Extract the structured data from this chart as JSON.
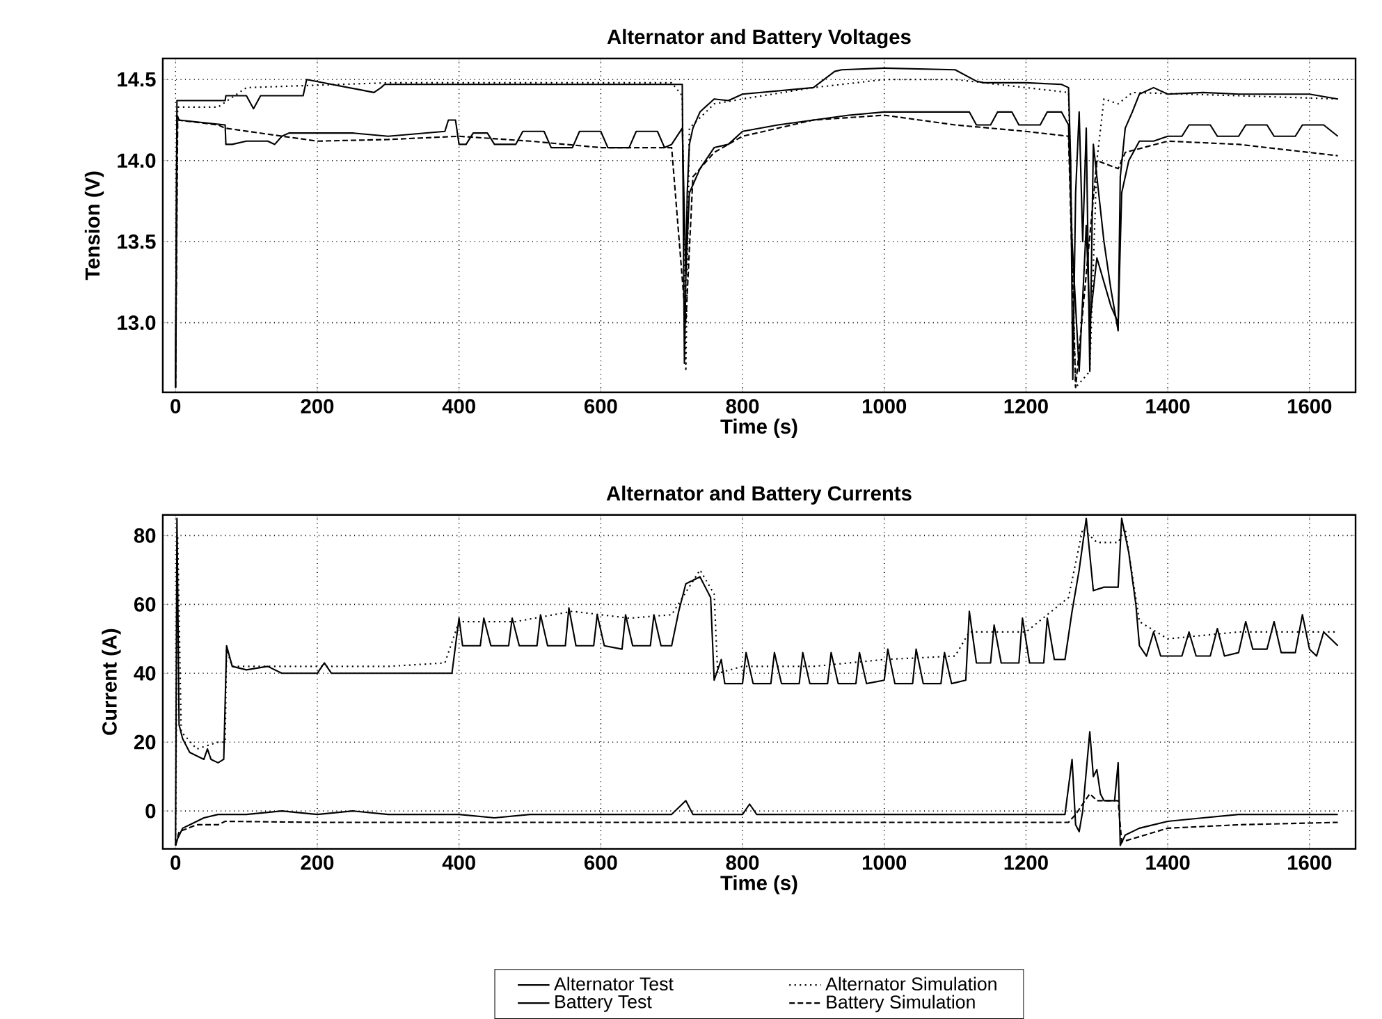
{
  "chart_data": [
    {
      "type": "line",
      "title": "Alternator and Battery Voltages",
      "xlabel": "Time (s)",
      "ylabel": "Tension (V)",
      "xlim": [
        -18,
        1665
      ],
      "ylim": [
        12.57,
        14.63
      ],
      "xticks": [
        0,
        200,
        400,
        600,
        800,
        1000,
        1200,
        1400,
        1600
      ],
      "yticks": [
        {
          "value": 13,
          "label": "13.0"
        },
        {
          "value": 13.5,
          "label": "13.5"
        },
        {
          "value": 14,
          "label": "14.0"
        },
        {
          "value": 14.5,
          "label": "14.5"
        }
      ],
      "grid": true,
      "series": [
        {
          "color": "#000000",
          "line_style": "solid",
          "x": [
            0,
            2,
            5,
            70,
            71,
            100,
            110,
            120,
            180,
            185,
            280,
            290,
            295,
            380,
            400,
            500,
            600,
            700,
            715,
            718,
            722,
            725,
            730,
            740,
            760,
            780,
            800,
            850,
            900,
            930,
            940,
            1000,
            1100,
            1130,
            1140,
            1200,
            1250,
            1260,
            1263,
            1266,
            1270,
            1275,
            1280,
            1285,
            1290,
            1295,
            1300,
            1310,
            1320,
            1330,
            1333,
            1340,
            1350,
            1360,
            1380,
            1400,
            1450,
            1500,
            1550,
            1600,
            1640
          ],
          "values": [
            12.6,
            14.37,
            14.37,
            14.37,
            14.4,
            14.4,
            14.32,
            14.4,
            14.4,
            14.5,
            14.42,
            14.45,
            14.47,
            14.47,
            14.47,
            14.47,
            14.47,
            14.47,
            14.47,
            12.75,
            13.8,
            14.1,
            14.2,
            14.3,
            14.38,
            14.37,
            14.41,
            14.43,
            14.45,
            14.55,
            14.56,
            14.57,
            14.56,
            14.49,
            14.48,
            14.48,
            14.47,
            14.45,
            14.0,
            12.65,
            13.8,
            14.3,
            13.5,
            14.2,
            12.7,
            14.1,
            13.9,
            13.5,
            13.2,
            12.95,
            13.9,
            14.2,
            14.3,
            14.41,
            14.45,
            14.41,
            14.42,
            14.41,
            14.41,
            14.41,
            14.38
          ]
        },
        {
          "color": "#000000",
          "line_style": "dotted",
          "x": [
            0,
            3,
            60,
            100,
            300,
            700,
            715,
            720,
            725,
            760,
            800,
            900,
            1000,
            1100,
            1200,
            1260,
            1270,
            1290,
            1300,
            1310,
            1330,
            1350,
            1500,
            1640
          ],
          "values": [
            12.6,
            14.33,
            14.33,
            14.45,
            14.48,
            14.48,
            14.4,
            12.7,
            14.2,
            14.35,
            14.38,
            14.45,
            14.5,
            14.5,
            14.45,
            14.42,
            12.6,
            12.7,
            14.0,
            14.38,
            14.35,
            14.42,
            14.4,
            14.38
          ]
        },
        {
          "color": "#000000",
          "line_style": "solid",
          "x": [
            0,
            2,
            5,
            70,
            71,
            80,
            100,
            130,
            140,
            150,
            160,
            200,
            250,
            300,
            380,
            385,
            395,
            400,
            410,
            420,
            440,
            450,
            480,
            490,
            520,
            530,
            560,
            570,
            600,
            610,
            640,
            650,
            680,
            690,
            700,
            715,
            720,
            725,
            740,
            760,
            780,
            800,
            850,
            900,
            950,
            1000,
            1050,
            1100,
            1120,
            1130,
            1150,
            1160,
            1180,
            1190,
            1220,
            1230,
            1250,
            1260,
            1265,
            1275,
            1285,
            1290,
            1300,
            1320,
            1330,
            1335,
            1345,
            1360,
            1380,
            1400,
            1420,
            1430,
            1460,
            1470,
            1500,
            1510,
            1540,
            1550,
            1580,
            1590,
            1620,
            1640
          ],
          "values": [
            12.6,
            14.28,
            14.25,
            14.22,
            14.1,
            14.1,
            14.12,
            14.12,
            14.1,
            14.15,
            14.17,
            14.17,
            14.17,
            14.15,
            14.18,
            14.25,
            14.25,
            14.1,
            14.1,
            14.17,
            14.17,
            14.1,
            14.1,
            14.18,
            14.18,
            14.08,
            14.08,
            14.18,
            14.18,
            14.08,
            14.08,
            14.18,
            14.18,
            14.08,
            14.1,
            14.2,
            13.3,
            13.8,
            13.95,
            14.08,
            14.1,
            14.18,
            14.22,
            14.25,
            14.28,
            14.3,
            14.3,
            14.3,
            14.3,
            14.22,
            14.22,
            14.3,
            14.3,
            14.22,
            14.22,
            14.3,
            14.3,
            14.22,
            13.5,
            12.7,
            13.6,
            13.0,
            13.4,
            13.1,
            13.0,
            13.8,
            14.0,
            14.12,
            14.12,
            14.15,
            14.15,
            14.22,
            14.22,
            14.15,
            14.15,
            14.22,
            14.22,
            14.15,
            14.15,
            14.22,
            14.22,
            14.15
          ]
        },
        {
          "color": "#000000",
          "line_style": "dashed",
          "x": [
            0,
            3,
            60,
            70,
            200,
            300,
            400,
            500,
            600,
            700,
            720,
            730,
            760,
            800,
            900,
            1000,
            1100,
            1200,
            1260,
            1270,
            1300,
            1330,
            1340,
            1400,
            1500,
            1600,
            1640
          ],
          "values": [
            12.6,
            14.25,
            14.22,
            14.2,
            14.12,
            14.13,
            14.15,
            14.12,
            14.08,
            14.08,
            13.0,
            13.9,
            14.05,
            14.15,
            14.25,
            14.28,
            14.22,
            14.18,
            14.15,
            12.6,
            14.0,
            13.95,
            14.05,
            14.12,
            14.1,
            14.05,
            14.03
          ]
        }
      ]
    },
    {
      "type": "line",
      "title": "Alternator and Battery Currents",
      "xlabel": "Time (s)",
      "ylabel": "Current (A)",
      "xlim": [
        -18,
        1665
      ],
      "ylim": [
        -11,
        86
      ],
      "xticks": [
        0,
        200,
        400,
        600,
        800,
        1000,
        1200,
        1400,
        1600
      ],
      "yticks": [
        0,
        20,
        40,
        60,
        80
      ],
      "grid": true,
      "legend": "bottom",
      "series": [
        {
          "name": "Alternator Test",
          "color": "#000000",
          "line_style": "solid",
          "x": [
            0,
            2,
            5,
            10,
            20,
            30,
            40,
            45,
            50,
            60,
            68,
            72,
            80,
            100,
            130,
            150,
            200,
            210,
            220,
            300,
            390,
            400,
            405,
            430,
            435,
            445,
            470,
            475,
            485,
            510,
            515,
            525,
            550,
            555,
            565,
            590,
            595,
            605,
            630,
            635,
            645,
            670,
            675,
            685,
            700,
            710,
            720,
            740,
            755,
            760,
            770,
            775,
            800,
            805,
            815,
            840,
            845,
            855,
            880,
            885,
            895,
            920,
            925,
            935,
            960,
            965,
            975,
            1000,
            1005,
            1015,
            1040,
            1045,
            1055,
            1080,
            1085,
            1095,
            1115,
            1120,
            1130,
            1150,
            1155,
            1165,
            1190,
            1195,
            1205,
            1225,
            1230,
            1240,
            1255,
            1265,
            1275,
            1285,
            1295,
            1310,
            1330,
            1335,
            1345,
            1355,
            1360,
            1370,
            1380,
            1390,
            1420,
            1430,
            1440,
            1460,
            1470,
            1480,
            1500,
            1510,
            1520,
            1540,
            1550,
            1560,
            1580,
            1590,
            1600,
            1610,
            1620,
            1640
          ],
          "values": [
            -10,
            85,
            25,
            21,
            17,
            16,
            15,
            18,
            15,
            14,
            15,
            48,
            42,
            41,
            42,
            40,
            40,
            43,
            40,
            40,
            40,
            56,
            48,
            48,
            56,
            48,
            48,
            56,
            48,
            48,
            57,
            48,
            48,
            59,
            48,
            48,
            57,
            48,
            47,
            57,
            48,
            48,
            57,
            48,
            48,
            58,
            66,
            68,
            62,
            38,
            44,
            37,
            37,
            46,
            37,
            37,
            46,
            37,
            37,
            46,
            37,
            37,
            46,
            37,
            37,
            46,
            37,
            38,
            47,
            37,
            37,
            47,
            37,
            37,
            46,
            37,
            38,
            58,
            43,
            43,
            54,
            43,
            43,
            56,
            43,
            43,
            56,
            44,
            44,
            58,
            70,
            85,
            64,
            65,
            65,
            85,
            75,
            60,
            48,
            45,
            52,
            45,
            45,
            52,
            45,
            45,
            53,
            45,
            46,
            55,
            47,
            47,
            55,
            46,
            46,
            57,
            47,
            45,
            52,
            48
          ]
        },
        {
          "name": "Alternator Simulation",
          "color": "#000000",
          "line_style": "dotted",
          "x": [
            0,
            3,
            8,
            30,
            60,
            70,
            72,
            80,
            200,
            300,
            380,
            400,
            440,
            480,
            560,
            640,
            700,
            740,
            760,
            765,
            800,
            900,
            1000,
            1100,
            1120,
            1200,
            1260,
            1280,
            1300,
            1330,
            1340,
            1360,
            1400,
            1500,
            1640
          ],
          "values": [
            -10,
            80,
            23,
            18,
            20,
            20,
            47,
            42,
            42,
            42,
            43,
            55,
            55,
            55,
            58,
            56,
            57,
            70,
            63,
            40,
            42,
            42,
            44,
            45,
            52,
            52,
            62,
            82,
            78,
            78,
            82,
            55,
            50,
            52,
            52
          ]
        },
        {
          "name": "Battery Test",
          "color": "#000000",
          "line_style": "solid",
          "x": [
            0,
            3,
            10,
            20,
            40,
            60,
            100,
            150,
            200,
            250,
            300,
            350,
            400,
            450,
            500,
            550,
            600,
            650,
            700,
            720,
            730,
            800,
            810,
            820,
            900,
            1000,
            1100,
            1200,
            1255,
            1265,
            1270,
            1275,
            1280,
            1290,
            1295,
            1300,
            1305,
            1310,
            1325,
            1330,
            1333,
            1340,
            1360,
            1400,
            1450,
            1500,
            1550,
            1600,
            1640
          ],
          "values": [
            -10,
            -8,
            -5,
            -4,
            -2,
            -1,
            -1,
            0,
            -1,
            0,
            -1,
            -1,
            -1,
            -2,
            -1,
            -1,
            -1,
            -1,
            -1,
            3,
            -1,
            -1,
            2,
            -1,
            -1,
            -1,
            -1,
            -1,
            -1,
            15,
            -4,
            -6,
            0,
            23,
            10,
            12,
            5,
            3,
            3,
            14,
            -10,
            -7,
            -5,
            -3,
            -2,
            -1,
            -1,
            -1,
            -1
          ]
        },
        {
          "name": "Battery Simulation",
          "color": "#000000",
          "line_style": "dashed",
          "x": [
            0,
            5,
            30,
            60,
            70,
            200,
            600,
            1000,
            1260,
            1270,
            1290,
            1300,
            1330,
            1335,
            1400,
            1500,
            1640
          ],
          "values": [
            -10,
            -6,
            -4,
            -4,
            -3,
            -3.3,
            -3.3,
            -3.3,
            -3.3,
            -1,
            5,
            3,
            3,
            -9,
            -5,
            -4,
            -3.3
          ]
        }
      ]
    }
  ]
}
